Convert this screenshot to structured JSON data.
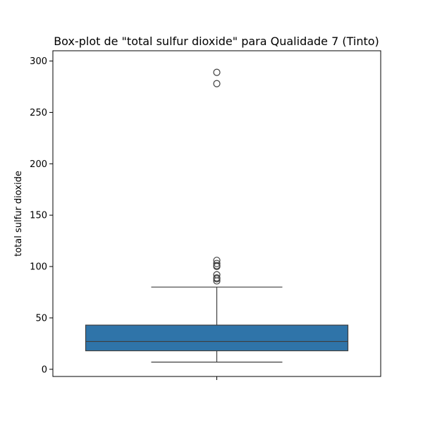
{
  "chart_data": {
    "type": "box",
    "title": "Box-plot de \"total sulfur dioxide\" para Qualidade 7 (Tinto)",
    "xlabel": "",
    "ylabel": "total sulfur dioxide",
    "ylim": [
      -7,
      310
    ],
    "yticks": [
      0,
      50,
      100,
      150,
      200,
      250,
      300
    ],
    "ytick_labels": [
      "0",
      "50",
      "100",
      "150",
      "200",
      "250",
      "300"
    ],
    "grid": false,
    "legend": "none",
    "box": {
      "whisker_low": 7,
      "q1": 18,
      "median": 27,
      "q3": 43,
      "whisker_high": 80,
      "outliers": [
        86,
        88,
        89,
        92,
        100,
        101,
        103,
        106,
        278,
        289
      ],
      "color": "#2f74a9",
      "line_color": "#3f3f3f"
    }
  }
}
